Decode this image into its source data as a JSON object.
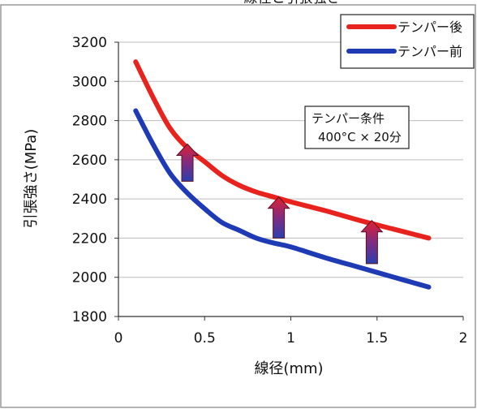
{
  "chart_data": {
    "type": "line",
    "title": "",
    "xlabel": "線径(mm)",
    "ylabel": "引張強さ(MPa)",
    "xlim": [
      0,
      2
    ],
    "ylim": [
      1800,
      3200
    ],
    "x_ticks": [
      "0",
      "0.5",
      "1",
      "1.5",
      "2"
    ],
    "y_ticks": [
      "1800",
      "2000",
      "2200",
      "2400",
      "2600",
      "2800",
      "3000",
      "3200"
    ],
    "grid": "horizontal",
    "legend_position": "top-right",
    "series": [
      {
        "name": "テンパー後",
        "color": "#e8231e",
        "x": [
          0.1,
          0.2,
          0.3,
          0.4,
          0.5,
          0.6,
          0.7,
          0.8,
          0.9,
          1.0,
          1.2,
          1.4,
          1.6,
          1.8
        ],
        "y": [
          3100,
          2920,
          2760,
          2660,
          2590,
          2520,
          2470,
          2435,
          2410,
          2385,
          2340,
          2290,
          2245,
          2200
        ]
      },
      {
        "name": "テンパー前",
        "color": "#1f3ab5",
        "x": [
          0.1,
          0.2,
          0.3,
          0.4,
          0.5,
          0.6,
          0.7,
          0.8,
          0.9,
          1.0,
          1.2,
          1.4,
          1.6,
          1.8
        ],
        "y": [
          2850,
          2680,
          2530,
          2430,
          2350,
          2280,
          2240,
          2200,
          2175,
          2155,
          2100,
          2050,
          2000,
          1950
        ]
      }
    ],
    "arrows": [
      {
        "x": 0.4,
        "from": 2490,
        "to": 2680
      },
      {
        "x": 0.93,
        "from": 2200,
        "to": 2410
      },
      {
        "x": 1.47,
        "from": 2070,
        "to": 2290
      }
    ],
    "annotation": {
      "line1": "テンパー条件",
      "line2": "400°C × 20分"
    },
    "cut_title": "線径と引張強さ"
  }
}
